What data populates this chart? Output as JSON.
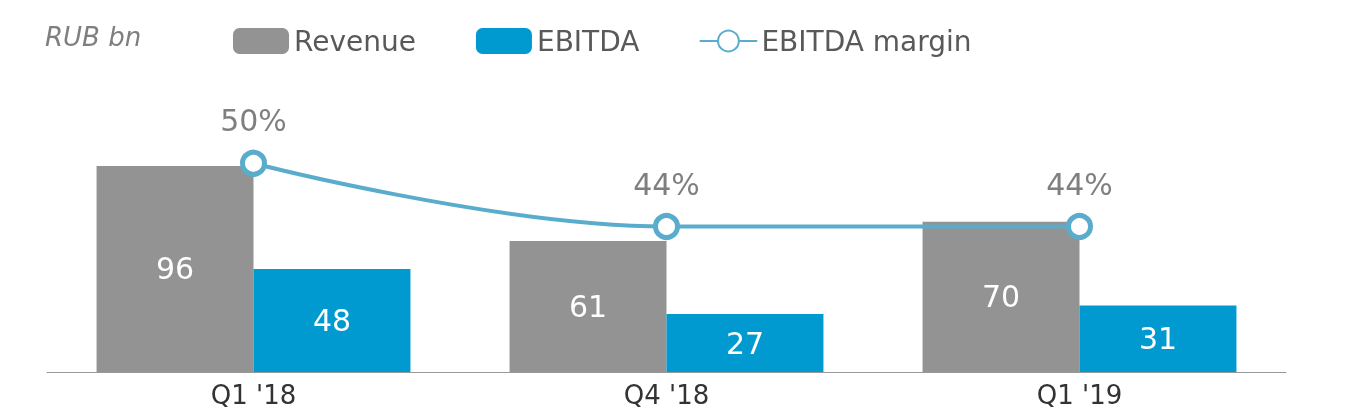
{
  "chart_data": {
    "type": "bar",
    "ylabel": "RUB bn",
    "categories": [
      "Q1 '18",
      "Q4 '18",
      "Q1 '19"
    ],
    "series": [
      {
        "name": "Revenue",
        "color": "#939393",
        "values": [
          96,
          61,
          70
        ]
      },
      {
        "name": "EBITDA",
        "color": "#0099d0",
        "values": [
          48,
          27,
          31
        ]
      },
      {
        "name": "EBITDA margin",
        "type": "line",
        "axis": "y2",
        "color": "#5aaccc",
        "values": [
          50,
          44,
          44
        ],
        "value_labels": [
          "50%",
          "44%",
          "44%"
        ]
      }
    ],
    "data_labels": true,
    "legend": "top left",
    "marker": "circle",
    "line_style": "solid",
    "tick_labels": "x"
  }
}
